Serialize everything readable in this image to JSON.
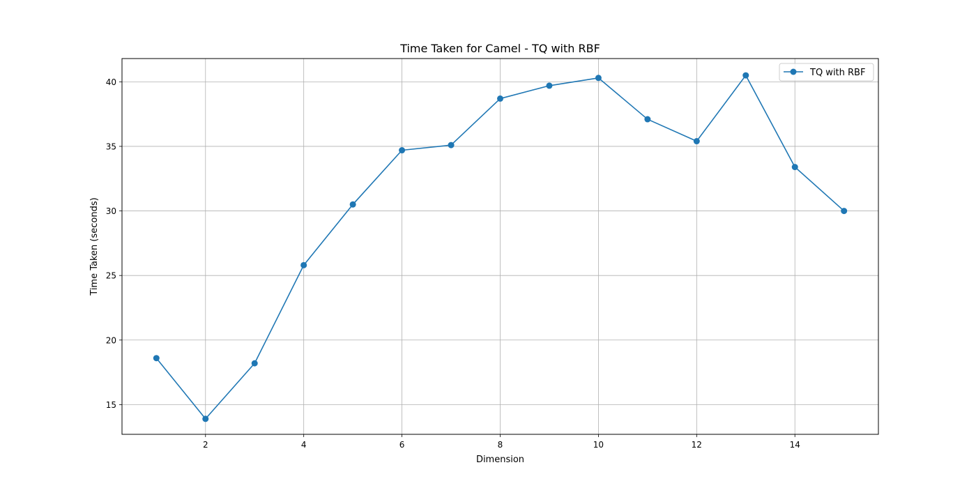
{
  "chart_data": {
    "type": "line",
    "title": "Time Taken for Camel - TQ with RBF",
    "xlabel": "Dimension",
    "ylabel": "Time Taken (seconds)",
    "x": [
      1,
      2,
      3,
      4,
      5,
      6,
      7,
      8,
      9,
      10,
      11,
      12,
      13,
      14,
      15
    ],
    "series": [
      {
        "name": "TQ with RBF",
        "color": "#1f77b4",
        "marker": "circle",
        "values": [
          18.6,
          13.9,
          18.2,
          25.8,
          30.5,
          34.7,
          35.1,
          38.7,
          39.7,
          40.3,
          37.1,
          35.4,
          40.5,
          33.4,
          30.0
        ]
      }
    ],
    "xlim": [
      0.3,
      15.7
    ],
    "ylim": [
      12.7,
      41.8
    ],
    "xticks": [
      2,
      4,
      6,
      8,
      10,
      12,
      14
    ],
    "yticks": [
      15,
      20,
      25,
      30,
      35,
      40
    ],
    "grid": true,
    "legend_position": "top-right"
  }
}
